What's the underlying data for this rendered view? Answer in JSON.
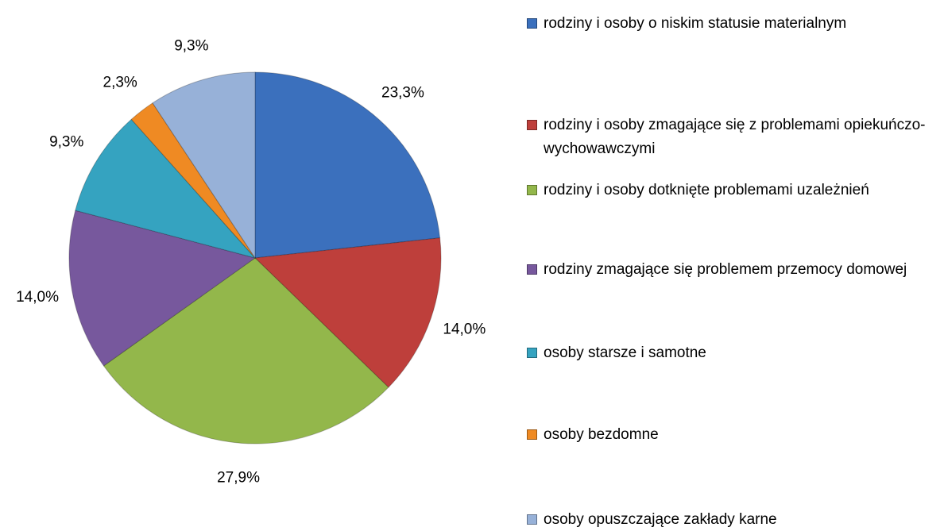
{
  "chart_data": {
    "type": "pie",
    "categories": [
      "rodziny i osoby o niskim statusie materialnym",
      "rodziny i osoby zmagające się z problemami opiekuńczo-wychowawczymi",
      "rodziny i osoby dotknięte problemami uzależnień",
      "rodziny zmagające się problemem przemocy domowej",
      "osoby starsze i samotne",
      "osoby bezdomne",
      "osoby opuszczające zakłady karne"
    ],
    "values": [
      23.3,
      14.0,
      27.9,
      14.0,
      9.3,
      2.3,
      9.3
    ],
    "value_labels": [
      "23,3%",
      "14,0%",
      "27,9%",
      "14,0%",
      "9,3%",
      "2,3%",
      "9,3%"
    ],
    "colors": [
      "#3b70bd",
      "#be3f3b",
      "#93b74b",
      "#77589d",
      "#35a3c0",
      "#ef8a23",
      "#97b1d8"
    ],
    "legend": "right"
  }
}
